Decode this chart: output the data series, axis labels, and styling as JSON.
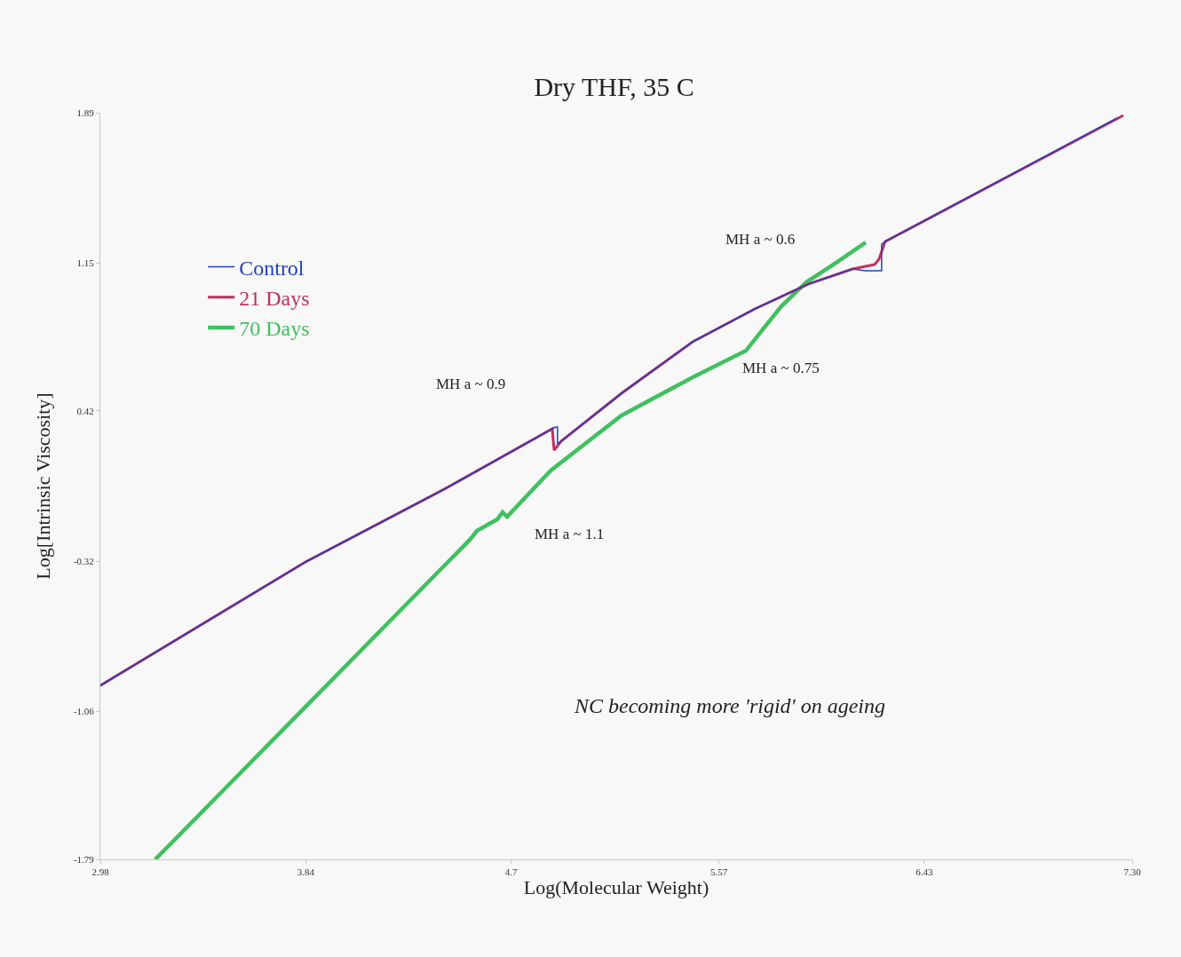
{
  "chart_data": {
    "type": "line",
    "title": "Dry THF, 35 C",
    "xlabel": "Log(Molecular Weight)",
    "ylabel": "Log[Intrinsic Viscosity]",
    "xlim": [
      2.98,
      7.3
    ],
    "xticks": [
      2.98,
      3.84,
      4.7,
      5.57,
      6.43,
      {
        "value": 7.3,
        "label": "7.30"
      }
    ],
    "ylim": [
      -1.79,
      1.89
    ],
    "yticks": [
      1.89,
      1.15,
      0.42,
      -0.32,
      -1.06,
      -1.79
    ],
    "grid": false,
    "legend": "top left",
    "marker": "none",
    "line_style": "solid",
    "series": [
      {
        "name": "Control",
        "color": "#2040c0",
        "x": [
          2.98,
          3.839,
          4.419,
          4.872,
          4.887,
          4.894,
          4.894,
          4.909,
          5.162,
          5.46,
          5.72,
          5.943,
          6.129,
          6.184,
          6.24,
          6.251,
          6.251,
          6.266,
          7.237
        ],
        "values": [
          -0.933,
          -0.324,
          0.034,
          0.332,
          0.341,
          0.341,
          0.258,
          0.271,
          0.507,
          0.761,
          0.923,
          1.045,
          1.12,
          1.111,
          1.111,
          1.111,
          1.242,
          1.255,
          1.864
        ]
      },
      {
        "name": "21 Days",
        "color": "#c0305a",
        "x": [
          2.98,
          3.839,
          4.419,
          4.872,
          4.88,
          4.909,
          5.162,
          5.46,
          5.72,
          5.943,
          6.129,
          6.222,
          6.24,
          6.266,
          7.263
        ],
        "values": [
          -0.933,
          -0.324,
          0.034,
          0.332,
          0.227,
          0.271,
          0.507,
          0.761,
          0.923,
          1.045,
          1.12,
          1.142,
          1.168,
          1.255,
          1.877
        ]
      },
      {
        "name": "70 Days",
        "color": "#40c060",
        "x": [
          3.21,
          3.861,
          4.53,
          4.556,
          4.642,
          4.664,
          4.683,
          4.865,
          5.162,
          5.46,
          5.683,
          5.757,
          5.831,
          5.935,
          6.054,
          6.184
        ],
        "values": [
          -1.79,
          -1.012,
          -0.211,
          -0.171,
          -0.114,
          -0.079,
          -0.101,
          0.126,
          0.398,
          0.586,
          0.717,
          0.827,
          0.936,
          1.054,
          1.146,
          1.251
        ]
      }
    ],
    "annotations": [
      "MH a ~ 0.9",
      "MH a ~ 0.6",
      "MH a ~ 0.75",
      "MH a ~ 1.1",
      "NC becoming more 'rigid' on ageing"
    ]
  }
}
